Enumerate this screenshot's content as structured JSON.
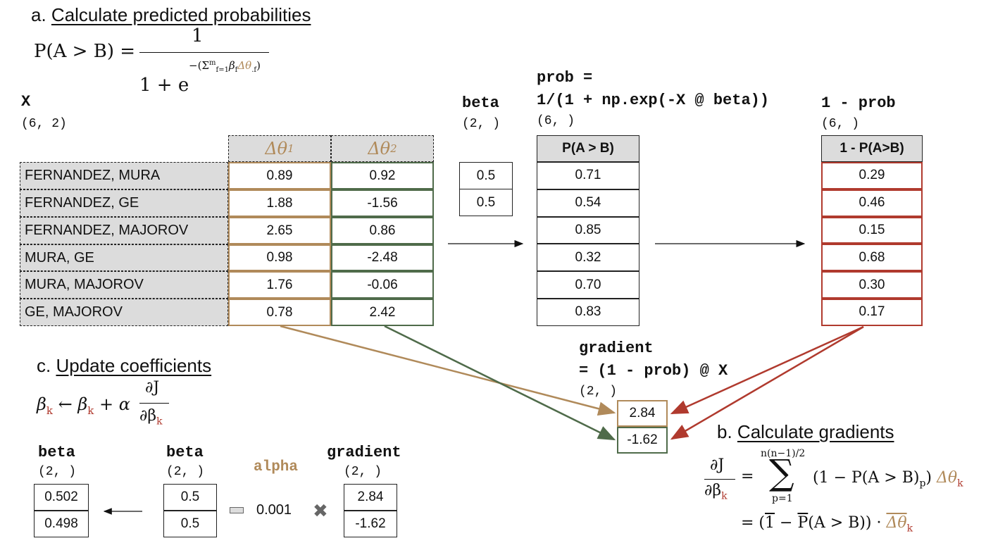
{
  "section_a": {
    "prefix": "a. ",
    "title": "Calculate predicted probabilities"
  },
  "section_b": {
    "prefix": "b. ",
    "title": "Calculate gradients"
  },
  "section_c": {
    "prefix": "c. ",
    "title": "Update coefficients"
  },
  "formula_a": {
    "lhs": "P(A > B) =",
    "num": "1",
    "den": "1 + e",
    "exp": "−(Σ",
    "exp_sup": "m",
    "exp_sub": "f=1",
    "exp_beta": "β",
    "exp_beta_sub": "f",
    "exp_dtheta": "Δθ",
    "exp_dtheta_sub": ".f",
    "exp_close": ")"
  },
  "X": {
    "label": "X",
    "shape": "(6, 2)",
    "columns": [
      {
        "symbol": "Δθ",
        "sub": "1"
      },
      {
        "symbol": "Δθ",
        "sub": "2"
      }
    ],
    "rows": [
      {
        "label": "FERNANDEZ, MURA",
        "c1": "0.89",
        "c2": "0.92"
      },
      {
        "label": "FERNANDEZ, GE",
        "c1": "1.88",
        "c2": "-1.56"
      },
      {
        "label": "FERNANDEZ, MAJOROV",
        "c1": "2.65",
        "c2": "0.86"
      },
      {
        "label": "MURA, GE",
        "c1": "0.98",
        "c2": "-2.48"
      },
      {
        "label": "MURA, MAJOROV",
        "c1": "1.76",
        "c2": "-0.06"
      },
      {
        "label": "GE, MAJOROV",
        "c1": "0.78",
        "c2": "2.42"
      }
    ]
  },
  "beta": {
    "label": "beta",
    "shape": "(2, )",
    "values": [
      "0.5",
      "0.5"
    ]
  },
  "prob": {
    "line1": "prob =",
    "line2": "1/(1 + np.exp(-X @ beta))",
    "shape": "(6, )",
    "header": "P(A > B)",
    "values": [
      "0.71",
      "0.54",
      "0.85",
      "0.32",
      "0.70",
      "0.83"
    ]
  },
  "oneminus": {
    "label": "1 - prob",
    "shape": "(6, )",
    "header": "1 - P(A>B)",
    "values": [
      "0.29",
      "0.46",
      "0.15",
      "0.68",
      "0.30",
      "0.17"
    ]
  },
  "gradient": {
    "line1": "gradient",
    "line2": "= (1 - prob) @ X",
    "shape": "(2, )",
    "values": [
      "2.84",
      "-1.62"
    ]
  },
  "update_formula": {
    "beta": "β",
    "sub": "k",
    "arrow": "←",
    "plus": "+",
    "alpha": "α",
    "partial_num": "∂J",
    "partial_den": "∂β"
  },
  "grad_formula": {
    "partial_num": "∂J",
    "partial_den": "∂β",
    "sub": "k",
    "eq": "=",
    "sum": "∑",
    "upper": "n(n−1)/2",
    "lower": "p=1",
    "term": "(1 − P(A > B)",
    "term_sub": "p",
    "term_close": ")",
    "dtheta": "Δθ",
    "line2_eq": "=",
    "line2": "(1 − P(A > B)) ·",
    "line2_one": "1",
    "line2_P": "P",
    "line2_dtheta": "Δθ"
  },
  "update": {
    "new_beta": {
      "label": "beta",
      "shape": "(2, )",
      "values": [
        "0.502",
        "0.498"
      ]
    },
    "old_beta": {
      "label": "beta",
      "shape": "(2, )",
      "values": [
        "0.5",
        "0.5"
      ]
    },
    "alpha_label": "alpha",
    "alpha_value": "0.001",
    "gradient": {
      "label": "gradient",
      "shape": "(2, )",
      "values": [
        "2.84",
        "-1.62"
      ]
    }
  },
  "colors": {
    "tan": "#b08a5a",
    "green": "#4f6b4a",
    "red": "#b03a2e",
    "grey": "#dcdcdc"
  }
}
